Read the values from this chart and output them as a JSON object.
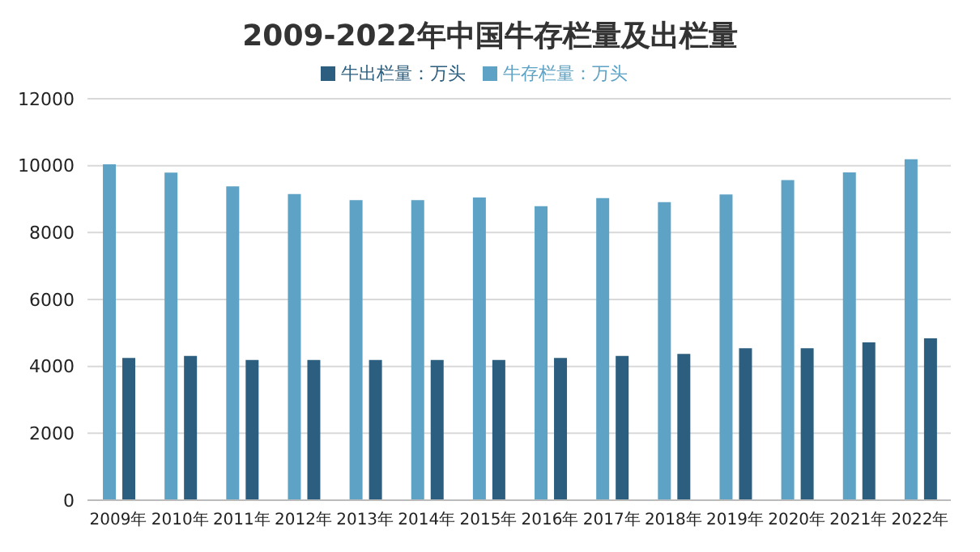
{
  "chart_data": {
    "type": "bar",
    "title": "2009-2022年中国牛存栏量及出栏量",
    "categories": [
      "2009年",
      "2010年",
      "2011年",
      "2012年",
      "2013年",
      "2014年",
      "2015年",
      "2016年",
      "2017年",
      "2018年",
      "2019年",
      "2020年",
      "2021年",
      "2022年"
    ],
    "series": [
      {
        "name": "牛存栏量：万头",
        "color": "#5ea3c6",
        "values": [
          10040,
          9790,
          9380,
          9150,
          8970,
          8970,
          9050,
          8790,
          9030,
          8910,
          9140,
          9570,
          9800,
          10190
        ]
      },
      {
        "name": "牛出栏量：万头",
        "color": "#2c5f7f",
        "values": [
          4250,
          4310,
          4190,
          4190,
          4190,
          4190,
          4190,
          4250,
          4310,
          4370,
          4540,
          4540,
          4720,
          4840
        ]
      }
    ],
    "ylim": [
      0,
      12000
    ],
    "yticks": [
      0,
      2000,
      4000,
      6000,
      8000,
      10000,
      12000
    ],
    "grid": "y",
    "legend": "top"
  }
}
